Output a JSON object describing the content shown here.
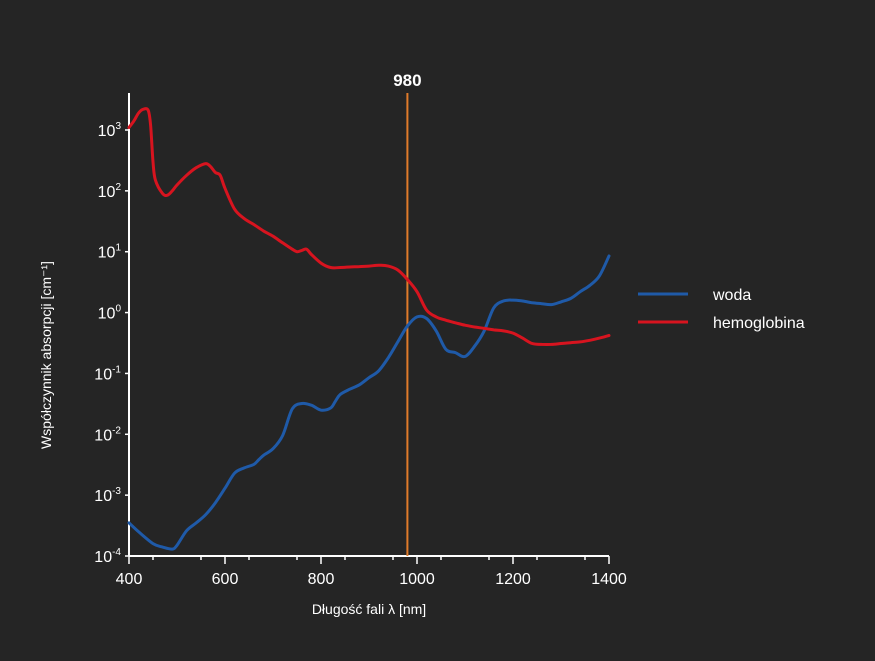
{
  "chart_data": {
    "type": "line",
    "title": "",
    "xlabel": "Długość fali λ [nm]",
    "ylabel": "Współczynnik absorpcji [cm⁻¹]",
    "xlim": [
      400,
      1400
    ],
    "ylim": [
      0.0001,
      1000
    ],
    "yscale": "log",
    "x_ticks": [
      400,
      600,
      800,
      1000,
      1200,
      1400
    ],
    "x_tick_labels": [
      "400",
      "600",
      "800",
      "1000",
      "1200",
      "1400"
    ],
    "y_ticks": [
      {
        "value": 1000,
        "base": "10",
        "exp": "3"
      },
      {
        "value": 100,
        "base": "10",
        "exp": "2"
      },
      {
        "value": 10,
        "base": "10",
        "exp": "1"
      },
      {
        "value": 1,
        "base": "10",
        "exp": "0"
      },
      {
        "value": 0.1,
        "base": "10",
        "exp": "-1"
      },
      {
        "value": 0.01,
        "base": "10",
        "exp": "-2"
      },
      {
        "value": 0.001,
        "base": "10",
        "exp": "-3"
      },
      {
        "value": 0.0001,
        "base": "10",
        "exp": "-4"
      }
    ],
    "grid": false,
    "legend_position": "right",
    "vertical_marker": {
      "x": 980,
      "label": "980",
      "color": "#e07b2a"
    },
    "series": [
      {
        "name": "woda",
        "color": "#1f5aa8",
        "x": [
          400,
          420,
          450,
          470,
          490,
          500,
          520,
          540,
          560,
          580,
          600,
          620,
          640,
          660,
          670,
          680,
          700,
          720,
          740,
          760,
          780,
          800,
          820,
          830,
          840,
          860,
          880,
          900,
          920,
          940,
          960,
          980,
          1000,
          1020,
          1040,
          1060,
          1080,
          1100,
          1120,
          1140,
          1160,
          1180,
          1200,
          1220,
          1240,
          1260,
          1280,
          1300,
          1320,
          1340,
          1360,
          1380,
          1400
        ],
        "y": [
          0.00035,
          0.00025,
          0.00016,
          0.00014,
          0.00013,
          0.00015,
          0.00026,
          0.00035,
          0.00048,
          0.00075,
          0.0013,
          0.0023,
          0.0028,
          0.0032,
          0.0038,
          0.0045,
          0.0058,
          0.0095,
          0.026,
          0.032,
          0.03,
          0.025,
          0.027,
          0.035,
          0.045,
          0.055,
          0.065,
          0.085,
          0.11,
          0.18,
          0.33,
          0.6,
          0.85,
          0.8,
          0.5,
          0.25,
          0.22,
          0.19,
          0.28,
          0.5,
          1.2,
          1.55,
          1.6,
          1.55,
          1.45,
          1.4,
          1.35,
          1.5,
          1.7,
          2.2,
          2.8,
          4.0,
          8.5
        ]
      },
      {
        "name": "hemoglobina",
        "color": "#d7141f",
        "x": [
          400,
          410,
          420,
          430,
          440,
          445,
          450,
          455,
          470,
          480,
          490,
          500,
          520,
          540,
          560,
          570,
          580,
          590,
          600,
          620,
          640,
          660,
          680,
          700,
          720,
          740,
          750,
          760,
          770,
          780,
          800,
          820,
          840,
          860,
          880,
          900,
          920,
          940,
          960,
          980,
          1000,
          1020,
          1040,
          1060,
          1080,
          1100,
          1120,
          1140,
          1160,
          1180,
          1200,
          1220,
          1240,
          1260,
          1280,
          1300,
          1320,
          1340,
          1360,
          1380,
          1400
        ],
        "y": [
          1100,
          1400,
          1900,
          2200,
          2100,
          1200,
          300,
          150,
          90,
          85,
          100,
          125,
          180,
          240,
          280,
          250,
          200,
          180,
          110,
          50,
          35,
          28,
          22,
          18,
          14,
          11,
          10,
          10.5,
          11,
          9,
          6.5,
          5.5,
          5.5,
          5.6,
          5.7,
          5.8,
          6.0,
          5.8,
          5.0,
          3.5,
          2.2,
          1.1,
          0.85,
          0.75,
          0.68,
          0.62,
          0.58,
          0.55,
          0.52,
          0.5,
          0.46,
          0.38,
          0.31,
          0.3,
          0.3,
          0.31,
          0.32,
          0.33,
          0.35,
          0.38,
          0.42
        ]
      }
    ]
  }
}
